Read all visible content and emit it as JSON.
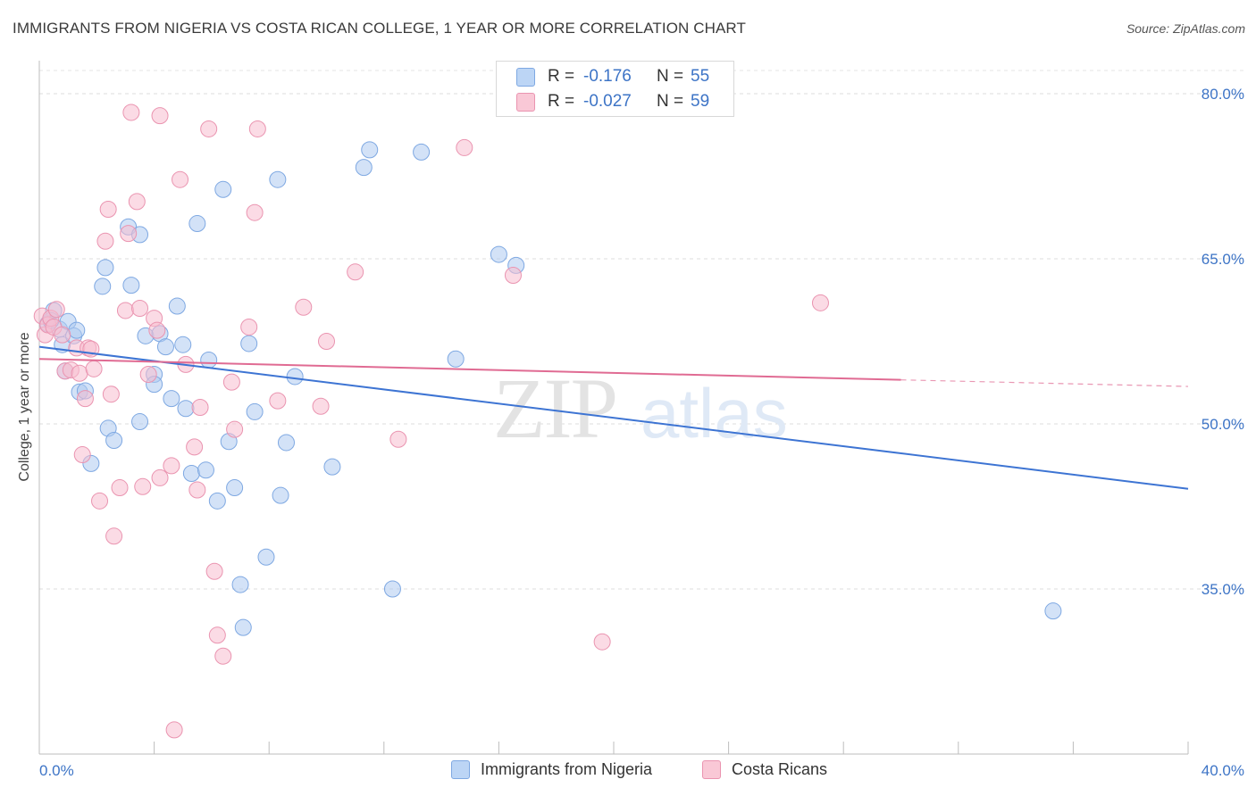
{
  "title": "IMMIGRANTS FROM NIGERIA VS COSTA RICAN COLLEGE, 1 YEAR OR MORE CORRELATION CHART",
  "source": "Source: ZipAtlas.com",
  "watermark": {
    "zip": "ZIP",
    "atlas": "atlas"
  },
  "legend": {
    "nigeria": {
      "r_label": "R =",
      "r_value": "-0.176",
      "n_label": "N =",
      "n_value": "55",
      "name": "Immigrants from Nigeria",
      "color": "#a9c8f0"
    },
    "costa": {
      "r_label": "R =",
      "r_value": "-0.027",
      "n_label": "N =",
      "n_value": "59",
      "name": "Costa Ricans",
      "color": "#f6b9cb"
    }
  },
  "chart_data": {
    "type": "scatter",
    "title": "IMMIGRANTS FROM NIGERIA VS COSTA RICAN COLLEGE, 1 YEAR OR MORE CORRELATION CHART",
    "xlabel": "",
    "ylabel": "College, 1 year or more",
    "xlim": [
      0,
      40
    ],
    "ylim": [
      20,
      83
    ],
    "x_tick_labels": [
      "0.0%",
      "40.0%"
    ],
    "y_ticks": [
      35,
      50,
      65,
      80
    ],
    "y_tick_labels": [
      "35.0%",
      "50.0%",
      "65.0%",
      "80.0%"
    ],
    "grid": true,
    "series": [
      {
        "name": "Immigrants from Nigeria",
        "color": "#3d74d3",
        "fill": "#aecbf1",
        "trend": {
          "x": [
            0,
            40
          ],
          "y": [
            57.0,
            44.1
          ]
        },
        "points": [
          [
            0.3,
            59.1
          ],
          [
            0.5,
            60.3
          ],
          [
            0.7,
            58.6
          ],
          [
            0.8,
            57.2
          ],
          [
            1.0,
            59.3
          ],
          [
            1.2,
            58.0
          ],
          [
            0.9,
            54.8
          ],
          [
            1.4,
            52.9
          ],
          [
            1.6,
            53.0
          ],
          [
            1.8,
            46.4
          ],
          [
            2.3,
            64.2
          ],
          [
            2.2,
            62.5
          ],
          [
            2.4,
            49.6
          ],
          [
            2.6,
            48.5
          ],
          [
            3.1,
            67.9
          ],
          [
            3.2,
            62.6
          ],
          [
            3.5,
            67.2
          ],
          [
            3.5,
            50.2
          ],
          [
            3.7,
            58.0
          ],
          [
            4.0,
            54.5
          ],
          [
            4.0,
            53.6
          ],
          [
            4.2,
            58.2
          ],
          [
            4.4,
            57.0
          ],
          [
            4.6,
            52.3
          ],
          [
            4.8,
            60.7
          ],
          [
            5.1,
            51.4
          ],
          [
            5.0,
            57.2
          ],
          [
            5.3,
            45.5
          ],
          [
            5.5,
            68.2
          ],
          [
            5.8,
            45.8
          ],
          [
            5.9,
            55.8
          ],
          [
            6.2,
            43.0
          ],
          [
            6.4,
            71.3
          ],
          [
            6.6,
            48.4
          ],
          [
            6.8,
            44.2
          ],
          [
            7.0,
            35.4
          ],
          [
            7.1,
            31.5
          ],
          [
            7.3,
            57.3
          ],
          [
            7.5,
            51.1
          ],
          [
            7.9,
            37.9
          ],
          [
            8.3,
            72.2
          ],
          [
            8.4,
            43.5
          ],
          [
            8.6,
            48.3
          ],
          [
            8.9,
            54.3
          ],
          [
            10.2,
            46.1
          ],
          [
            11.3,
            73.3
          ],
          [
            11.5,
            74.9
          ],
          [
            12.3,
            35.0
          ],
          [
            13.3,
            74.7
          ],
          [
            14.5,
            55.9
          ],
          [
            16.0,
            65.4
          ],
          [
            16.6,
            64.4
          ],
          [
            35.3,
            33.0
          ],
          [
            0.4,
            59.4
          ],
          [
            1.3,
            58.5
          ]
        ]
      },
      {
        "name": "Costa Ricans",
        "color": "#e06b93",
        "fill": "#f7bdd0",
        "trend": {
          "x": [
            0,
            30
          ],
          "y": [
            55.9,
            54.0
          ]
        },
        "trend_dashed": {
          "x": [
            30,
            40
          ],
          "y": [
            54.0,
            53.4
          ]
        },
        "points": [
          [
            0.1,
            59.8
          ],
          [
            0.2,
            58.1
          ],
          [
            0.3,
            59.0
          ],
          [
            0.4,
            59.6
          ],
          [
            0.5,
            58.8
          ],
          [
            0.6,
            60.4
          ],
          [
            0.8,
            58.1
          ],
          [
            0.9,
            54.8
          ],
          [
            1.1,
            54.9
          ],
          [
            1.3,
            56.9
          ],
          [
            1.4,
            54.6
          ],
          [
            1.5,
            47.2
          ],
          [
            1.6,
            52.3
          ],
          [
            1.7,
            56.9
          ],
          [
            1.9,
            55.0
          ],
          [
            2.1,
            43.0
          ],
          [
            2.3,
            66.6
          ],
          [
            2.4,
            69.5
          ],
          [
            2.5,
            52.7
          ],
          [
            2.6,
            39.8
          ],
          [
            2.8,
            44.2
          ],
          [
            3.0,
            60.3
          ],
          [
            3.1,
            67.3
          ],
          [
            3.2,
            78.3
          ],
          [
            3.4,
            70.2
          ],
          [
            3.5,
            60.5
          ],
          [
            3.6,
            44.3
          ],
          [
            3.8,
            54.5
          ],
          [
            4.0,
            59.6
          ],
          [
            4.1,
            58.5
          ],
          [
            4.2,
            45.1
          ],
          [
            4.2,
            78.0
          ],
          [
            4.6,
            46.2
          ],
          [
            4.9,
            72.2
          ],
          [
            5.1,
            55.4
          ],
          [
            5.4,
            47.9
          ],
          [
            5.5,
            44.0
          ],
          [
            5.6,
            51.5
          ],
          [
            5.9,
            76.8
          ],
          [
            6.1,
            36.6
          ],
          [
            6.2,
            30.8
          ],
          [
            6.4,
            28.9
          ],
          [
            6.7,
            53.8
          ],
          [
            6.8,
            49.5
          ],
          [
            7.3,
            58.8
          ],
          [
            7.6,
            76.8
          ],
          [
            7.5,
            69.2
          ],
          [
            8.3,
            52.1
          ],
          [
            9.2,
            60.6
          ],
          [
            9.8,
            51.6
          ],
          [
            10.0,
            57.5
          ],
          [
            11.0,
            63.8
          ],
          [
            12.5,
            48.6
          ],
          [
            14.8,
            75.1
          ],
          [
            16.5,
            63.5
          ],
          [
            19.6,
            30.2
          ],
          [
            27.2,
            61.0
          ],
          [
            4.7,
            22.2
          ],
          [
            1.8,
            56.8
          ]
        ]
      }
    ]
  }
}
